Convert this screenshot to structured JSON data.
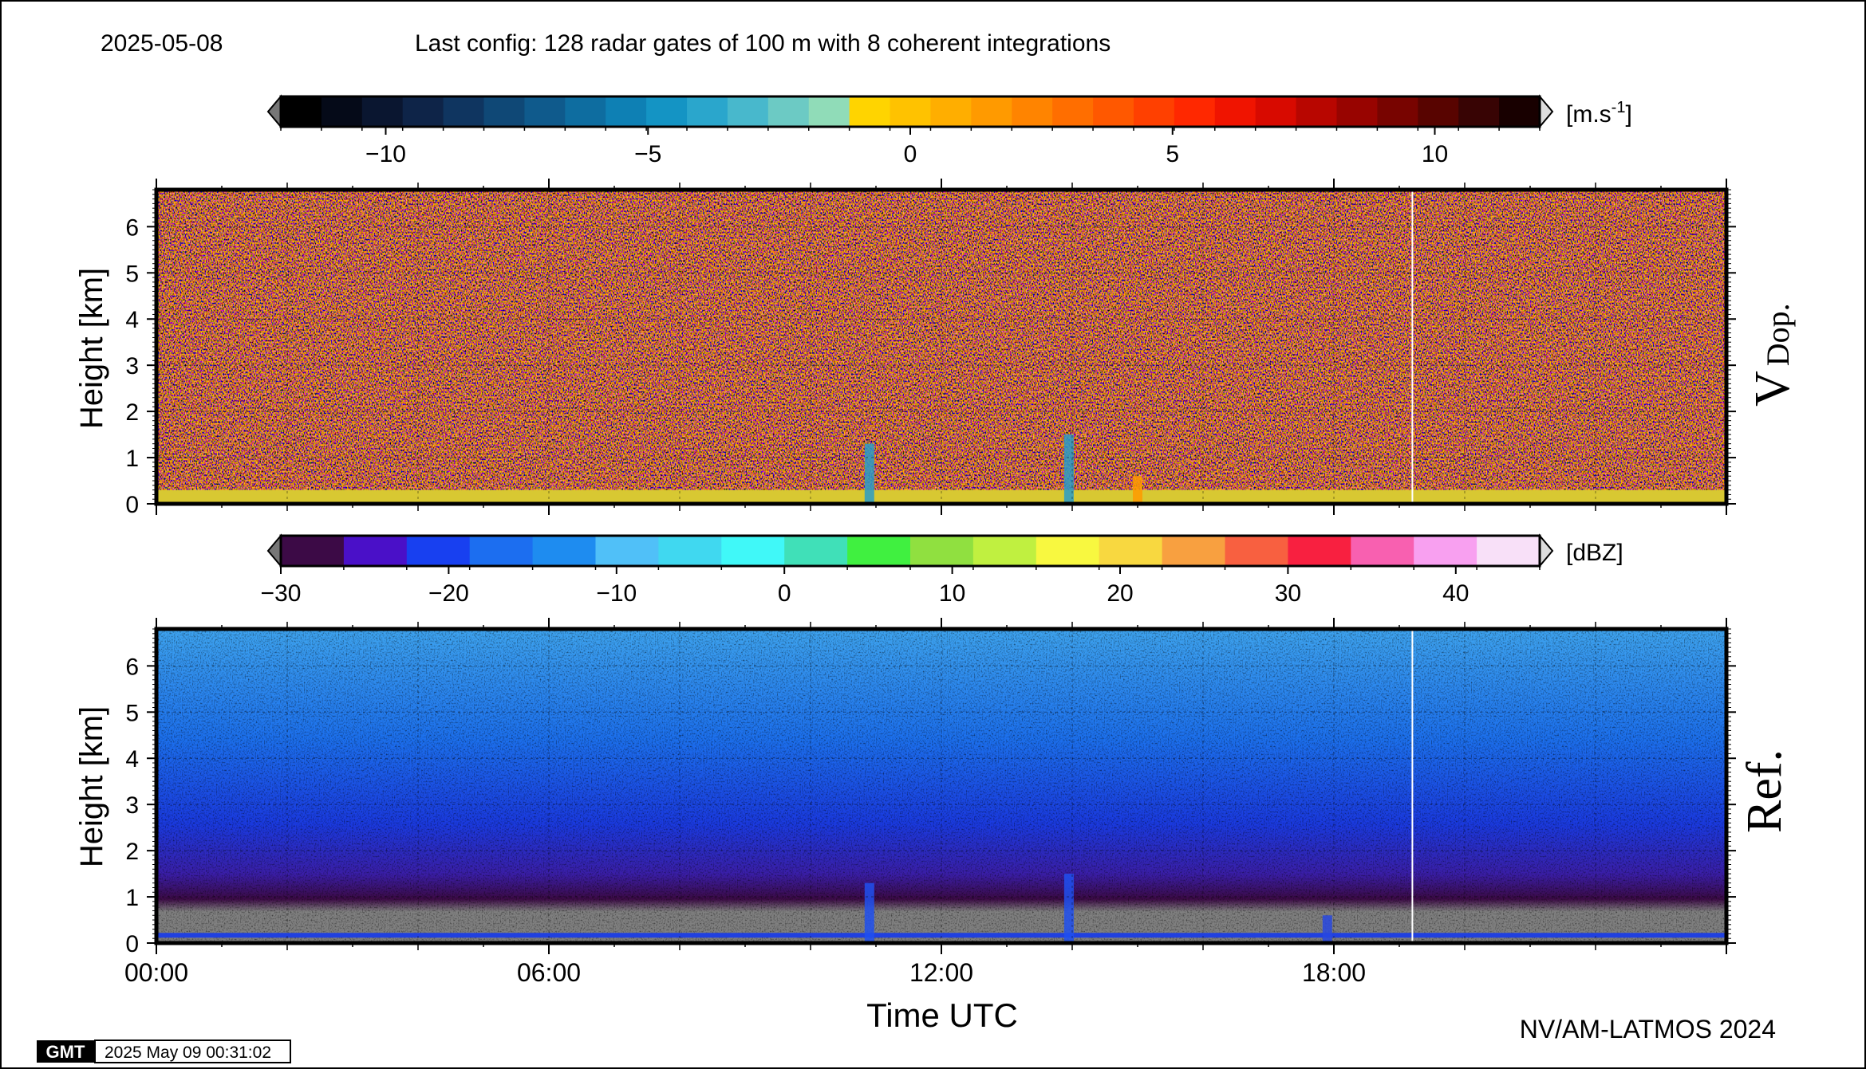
{
  "header": {
    "date": "2025-05-08",
    "config": "Last config: 128 radar gates of 100 m with 8 coherent integrations"
  },
  "footer": {
    "credit": "NV/AM-LATMOS 2024",
    "gmt_logo": "GMT",
    "timestamp": "2025 May 09 00:31:02"
  },
  "chart_data": [
    {
      "type": "heatmap",
      "id": "doppler",
      "panel_label": "V",
      "panel_label_sub": "Dop.",
      "ylabel": "Height [km]",
      "xlabel": "",
      "x_range_hours": [
        0,
        24
      ],
      "ylim": [
        0,
        6.8
      ],
      "y_ticks": [
        "0",
        "1",
        "2",
        "3",
        "4",
        "5",
        "6"
      ],
      "grid": true,
      "colorbar": {
        "unit": "[m.s",
        "unit_sup": "-1",
        "unit_end": "]",
        "range": [
          -12,
          12
        ],
        "ticks": [
          "−10",
          "−5",
          "0",
          "5",
          "10"
        ],
        "tick_values": [
          -10,
          -5,
          0,
          5,
          10
        ],
        "colors": [
          "#000000",
          "#050a18",
          "#0a1630",
          "#0e2448",
          "#0f3560",
          "#0f4876",
          "#0f5a8c",
          "#0e6da0",
          "#0e80b4",
          "#1494c4",
          "#2aa6cc",
          "#48b8cc",
          "#6ccac4",
          "#90dcb8",
          "#ffd400",
          "#ffc200",
          "#ffae00",
          "#ff9a00",
          "#ff8400",
          "#ff6e00",
          "#ff5800",
          "#ff4000",
          "#ff2800",
          "#f01400",
          "#d80a00",
          "#b80600",
          "#980400",
          "#780400",
          "#580400",
          "#380404",
          "#180000"
        ]
      },
      "annotations": [
        {
          "hour": 10.9,
          "top_km": 1.3,
          "kind": "cyan-plume"
        },
        {
          "hour": 13.95,
          "top_km": 1.5,
          "kind": "cyan-plume"
        },
        {
          "hour": 15.0,
          "top_km": 0.6,
          "kind": "orange-patch"
        }
      ]
    },
    {
      "type": "heatmap",
      "id": "reflectivity",
      "panel_label": "Ref.",
      "ylabel": "Height [km]",
      "xlabel": "Time UTC",
      "x_range_hours": [
        0,
        24
      ],
      "x_ticks": [
        "00:00",
        "06:00",
        "12:00",
        "18:00"
      ],
      "x_tick_hours": [
        0,
        6,
        12,
        18
      ],
      "ylim": [
        0,
        6.8
      ],
      "y_ticks": [
        "0",
        "1",
        "2",
        "3",
        "4",
        "5",
        "6"
      ],
      "grid": true,
      "colorbar": {
        "unit": "[dBZ]",
        "range": [
          -30,
          45
        ],
        "ticks": [
          "−30",
          "−20",
          "−10",
          "0",
          "10",
          "20",
          "30",
          "40"
        ],
        "tick_values": [
          -30,
          -20,
          -10,
          0,
          10,
          20,
          30,
          40
        ],
        "colors": [
          "#3c0a46",
          "#4a10c8",
          "#1840f0",
          "#1c6ef0",
          "#1e8cf0",
          "#50c0f8",
          "#40d8f0",
          "#40f8f8",
          "#40e0b8",
          "#40f040",
          "#90e040",
          "#c0f040",
          "#f8f840",
          "#f8d840",
          "#f8a040",
          "#f86040",
          "#f82040",
          "#f860b0",
          "#f8a0f0",
          "#f8e0f8"
        ]
      },
      "annotations": [
        {
          "hour": 10.9,
          "top_km": 1.3,
          "kind": "blue-plume"
        },
        {
          "hour": 13.95,
          "top_km": 1.5,
          "kind": "blue-plume"
        },
        {
          "hour": 17.9,
          "top_km": 0.6,
          "kind": "blue-patch"
        }
      ]
    }
  ]
}
